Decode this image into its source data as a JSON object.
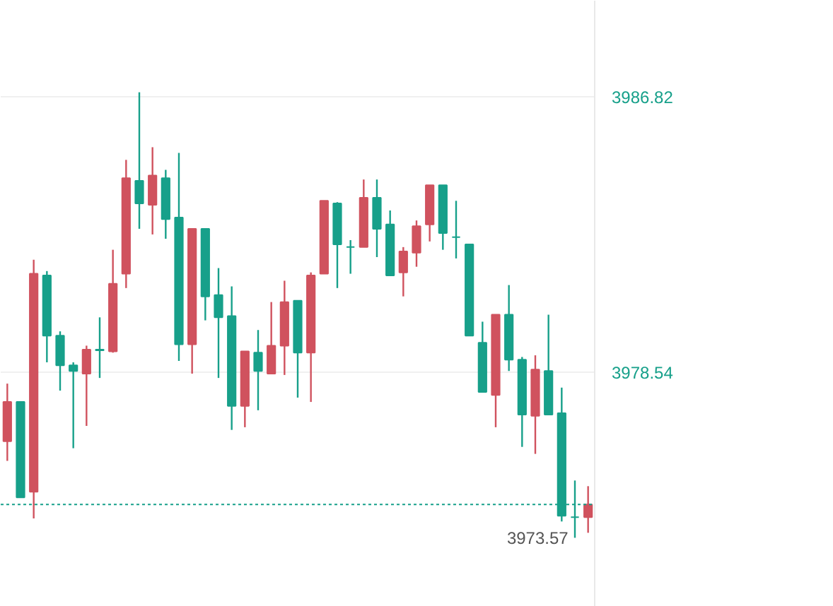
{
  "chart_data": {
    "type": "candlestick",
    "categories": [
      null,
      null,
      null,
      null,
      null,
      null,
      null,
      null,
      null,
      null,
      null,
      null,
      null,
      null,
      null,
      null,
      null,
      null,
      null,
      null,
      null,
      null,
      null,
      null,
      null,
      null,
      null,
      null,
      null,
      null,
      null,
      null,
      null,
      null,
      null,
      null,
      null,
      null,
      null,
      null,
      null,
      null,
      null,
      null,
      null
    ],
    "ohlc": [
      [
        3976.47,
        3978.2,
        3975.88,
        3977.65
      ],
      [
        3977.65,
        3977.65,
        3974.78,
        3974.78
      ],
      [
        3974.95,
        3981.92,
        3974.15,
        3981.5
      ],
      [
        3981.45,
        3981.58,
        3978.84,
        3979.64
      ],
      [
        3979.64,
        3979.77,
        3977.99,
        3978.75
      ],
      [
        3978.75,
        3978.84,
        3976.26,
        3978.58
      ],
      [
        3978.5,
        3979.34,
        3976.93,
        3979.22
      ],
      [
        3979.22,
        3980.19,
        3978.37,
        3979.2
      ],
      [
        3979.17,
        3982.22,
        3979.13,
        3981.2
      ],
      [
        3981.5,
        3984.92,
        3981.07,
        3984.37
      ],
      [
        3984.29,
        3986.95,
        3982.85,
        3983.61
      ],
      [
        3983.57,
        3985.3,
        3982.68,
        3984.45
      ],
      [
        3984.37,
        3984.62,
        3982.55,
        3983.14
      ],
      [
        3983.19,
        3985.13,
        3978.88,
        3979.38
      ],
      [
        3979.38,
        3982.85,
        3978.5,
        3982.85
      ],
      [
        3982.85,
        3982.85,
        3980.1,
        3980.82
      ],
      [
        3980.86,
        3981.67,
        3978.37,
        3980.19
      ],
      [
        3980.23,
        3981.12,
        3976.81,
        3977.53
      ],
      [
        3977.53,
        3979.17,
        3976.89,
        3979.17
      ],
      [
        3979.13,
        3979.81,
        3977.4,
        3978.58
      ],
      [
        3978.5,
        3980.65,
        3978.5,
        3979.34
      ],
      [
        3979.34,
        3981.29,
        3978.46,
        3980.65
      ],
      [
        3980.69,
        3980.69,
        3977.78,
        3979.13
      ],
      [
        3979.13,
        3981.54,
        3977.65,
        3981.45
      ],
      [
        3981.5,
        3983.69,
        3981.5,
        3983.69
      ],
      [
        3983.61,
        3983.65,
        3981.07,
        3982.38
      ],
      [
        3982.3,
        3982.51,
        3981.5,
        3982.3
      ],
      [
        3982.3,
        3984.33,
        3982.3,
        3983.78
      ],
      [
        3983.78,
        3984.33,
        3982.0,
        3982.85
      ],
      [
        3982.98,
        3983.4,
        3981.45,
        3981.45
      ],
      [
        3981.54,
        3982.3,
        3980.82,
        3982.17
      ],
      [
        3982.13,
        3983.1,
        3981.71,
        3982.93
      ],
      [
        3982.98,
        3984.16,
        3982.47,
        3984.16
      ],
      [
        3984.16,
        3984.16,
        3982.22,
        3982.72
      ],
      [
        3982.6,
        3983.69,
        3981.96,
        3982.6
      ],
      [
        3982.38,
        3982.38,
        3979.64,
        3979.64
      ],
      [
        3979.43,
        3980.06,
        3977.95,
        3977.95
      ],
      [
        3977.86,
        3980.27,
        3976.89,
        3980.27
      ],
      [
        3980.27,
        3981.16,
        3978.58,
        3978.92
      ],
      [
        3978.92,
        3979.0,
        3976.3,
        3977.27
      ],
      [
        3977.23,
        3979.05,
        3976.09,
        3978.62
      ],
      [
        3978.58,
        3980.27,
        3977.27,
        3977.27
      ],
      [
        3977.31,
        3978.08,
        3974.06,
        3974.23
      ],
      [
        3974.19,
        3975.29,
        3973.57,
        3974.19
      ],
      [
        3974.19,
        3975.12,
        3973.72,
        3974.57
      ]
    ],
    "colors": [
      "#d0525e",
      "#17a08a",
      "#d0525e",
      "#17a08a",
      "#17a08a",
      "#17a08a",
      "#d0525e",
      "#17a08a",
      "#d0525e",
      "#d0525e",
      "#17a08a",
      "#d0525e",
      "#17a08a",
      "#17a08a",
      "#d0525e",
      "#17a08a",
      "#17a08a",
      "#17a08a",
      "#d0525e",
      "#17a08a",
      "#d0525e",
      "#d0525e",
      "#17a08a",
      "#d0525e",
      "#d0525e",
      "#17a08a",
      "#17a08a",
      "#d0525e",
      "#17a08a",
      "#17a08a",
      "#d0525e",
      "#d0525e",
      "#d0525e",
      "#17a08a",
      "#17a08a",
      "#17a08a",
      "#17a08a",
      "#d0525e",
      "#17a08a",
      "#17a08a",
      "#d0525e",
      "#17a08a",
      "#17a08a",
      "#17a08a",
      "#d0525e"
    ],
    "ylim": [
      3971.5,
      3989.7
    ],
    "yticks": [
      3978.54,
      3986.82
    ],
    "grid": "y",
    "ref_lines": [
      {
        "axis": "y",
        "value": 3974.57,
        "color": "#17a08a",
        "line_style": "dotted"
      }
    ],
    "annotations": [
      "3973.57"
    ]
  }
}
